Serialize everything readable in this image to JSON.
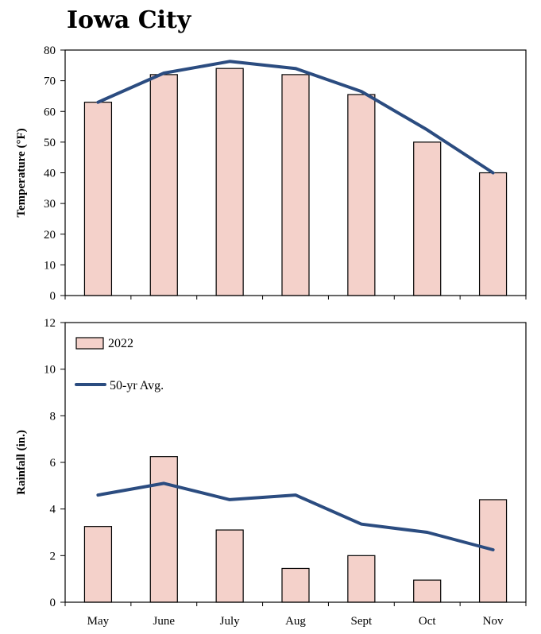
{
  "title": "Iowa City",
  "legend": {
    "bar_label": "2022",
    "line_label": "50-yr Avg."
  },
  "colors": {
    "bar_fill": "#f4d1ca",
    "bar_stroke": "#000000",
    "line": "#2b4c80"
  },
  "chart_data": [
    {
      "type": "bar+line",
      "ylabel": "Temperature  (°F)",
      "categories": [
        "May",
        "June",
        "July",
        "Aug",
        "Sept",
        "Oct",
        "Nov"
      ],
      "ylim": [
        0,
        80
      ],
      "yticks": [
        0,
        10,
        20,
        30,
        40,
        50,
        60,
        70,
        80
      ],
      "series": [
        {
          "name": "2022",
          "kind": "bar",
          "values": [
            63,
            72,
            74,
            72,
            65.5,
            50,
            40
          ]
        },
        {
          "name": "50-yr Avg.",
          "kind": "line",
          "values": [
            63,
            72.5,
            76.3,
            74,
            66.5,
            54,
            40
          ]
        }
      ]
    },
    {
      "type": "bar+line",
      "ylabel": "Rainfall  (in.)",
      "xlabel": "",
      "categories": [
        "May",
        "June",
        "July",
        "Aug",
        "Sept",
        "Oct",
        "Nov"
      ],
      "ylim": [
        0,
        12
      ],
      "yticks": [
        0,
        2,
        4,
        6,
        8,
        10,
        12
      ],
      "series": [
        {
          "name": "2022",
          "kind": "bar",
          "values": [
            3.25,
            6.25,
            3.1,
            1.45,
            2.0,
            0.95,
            4.4
          ]
        },
        {
          "name": "50-yr Avg.",
          "kind": "line",
          "values": [
            4.6,
            5.1,
            4.4,
            4.6,
            3.35,
            3.0,
            2.25
          ]
        }
      ]
    }
  ]
}
